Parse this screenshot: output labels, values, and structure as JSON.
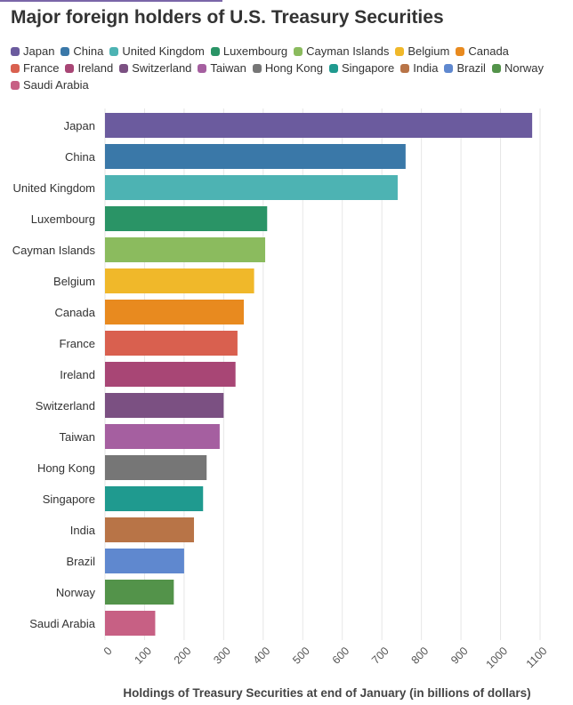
{
  "title": "Major foreign holders of U.S. Treasury Securities",
  "chart_data": {
    "type": "bar",
    "orientation": "horizontal",
    "title": "Major foreign holders of U.S. Treasury Securities",
    "xlabel": "Holdings of Treasury Securities at end of January (in billions of dollars)",
    "ylabel": "",
    "xlim": [
      0,
      1100
    ],
    "ticks": [
      0,
      100,
      200,
      300,
      400,
      500,
      600,
      700,
      800,
      900,
      1000,
      1100
    ],
    "legend_position": "top",
    "grid": true,
    "categories": [
      "Japan",
      "China",
      "United Kingdom",
      "Luxembourg",
      "Cayman Islands",
      "Belgium",
      "Canada",
      "France",
      "Ireland",
      "Switzerland",
      "Taiwan",
      "Hong Kong",
      "Singapore",
      "India",
      "Brazil",
      "Norway",
      "Saudi Arabia"
    ],
    "values": [
      1080,
      760,
      740,
      410,
      405,
      377,
      351,
      335,
      330,
      300,
      290,
      257,
      248,
      225,
      200,
      174,
      127
    ],
    "colors": [
      "#6b5b9e",
      "#3a78a8",
      "#4db3b3",
      "#2a9466",
      "#8bbb5e",
      "#f0b82a",
      "#e88a1f",
      "#d9604f",
      "#a84675",
      "#7b5082",
      "#a55fa0",
      "#767676",
      "#1f9a8f",
      "#b87447",
      "#5f88cf",
      "#53934a",
      "#c76084"
    ]
  }
}
